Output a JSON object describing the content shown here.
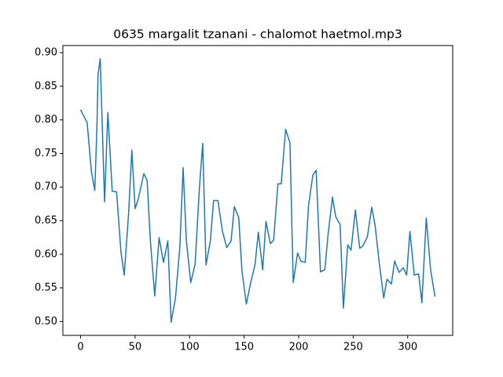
{
  "chart_data": {
    "type": "line",
    "title": "0635 margalit tzanani - chalomot haetmol.mp3",
    "x": [
      0,
      6,
      10,
      13,
      15,
      16,
      18,
      22,
      25,
      29,
      33,
      37,
      40,
      44,
      47,
      50,
      53,
      58,
      61,
      64,
      68,
      72,
      76,
      80,
      83,
      87,
      91,
      94,
      97,
      101,
      105,
      109,
      112,
      115,
      119,
      122,
      126,
      130,
      134,
      138,
      141,
      145,
      148,
      152,
      156,
      160,
      163,
      167,
      170,
      174,
      177,
      181,
      184,
      188,
      192,
      195,
      199,
      202,
      206,
      209,
      213,
      216,
      220,
      224,
      227,
      231,
      234,
      238,
      241,
      245,
      248,
      252,
      256,
      259,
      263,
      267,
      270,
      274,
      278,
      281,
      285,
      288,
      292,
      296,
      299,
      302,
      306,
      310,
      313,
      317,
      321,
      325
    ],
    "series": [
      {
        "color": "#1f77b4",
        "values": [
          0.815,
          0.796,
          0.722,
          0.695,
          0.79,
          0.868,
          0.891,
          0.678,
          0.811,
          0.694,
          0.693,
          0.604,
          0.569,
          0.66,
          0.755,
          0.668,
          0.683,
          0.72,
          0.71,
          0.62,
          0.538,
          0.625,
          0.588,
          0.62,
          0.499,
          0.535,
          0.61,
          0.729,
          0.62,
          0.558,
          0.585,
          0.7,
          0.765,
          0.584,
          0.62,
          0.68,
          0.68,
          0.635,
          0.61,
          0.62,
          0.671,
          0.655,
          0.575,
          0.526,
          0.558,
          0.585,
          0.633,
          0.577,
          0.649,
          0.616,
          0.621,
          0.705,
          0.705,
          0.786,
          0.766,
          0.558,
          0.602,
          0.59,
          0.588,
          0.672,
          0.718,
          0.725,
          0.574,
          0.577,
          0.63,
          0.685,
          0.656,
          0.644,
          0.52,
          0.614,
          0.606,
          0.666,
          0.609,
          0.613,
          0.626,
          0.67,
          0.644,
          0.586,
          0.535,
          0.563,
          0.556,
          0.59,
          0.573,
          0.58,
          0.569,
          0.634,
          0.569,
          0.571,
          0.528,
          0.654,
          0.577,
          0.537
        ]
      }
    ],
    "xlim": [
      -16.25,
      341.25
    ],
    "ylim": [
      0.4794,
      0.9106
    ],
    "xticks": [
      0,
      50,
      100,
      150,
      200,
      250,
      300
    ],
    "yticks": [
      {
        "value": 0.5,
        "label": "0.50"
      },
      0.55,
      {
        "value": 0.6,
        "label": "0.60"
      },
      0.65,
      {
        "value": 0.7,
        "label": "0.70"
      },
      0.75,
      {
        "value": 0.8,
        "label": "0.80"
      },
      0.85,
      {
        "value": 0.9,
        "label": "0.90"
      }
    ]
  }
}
